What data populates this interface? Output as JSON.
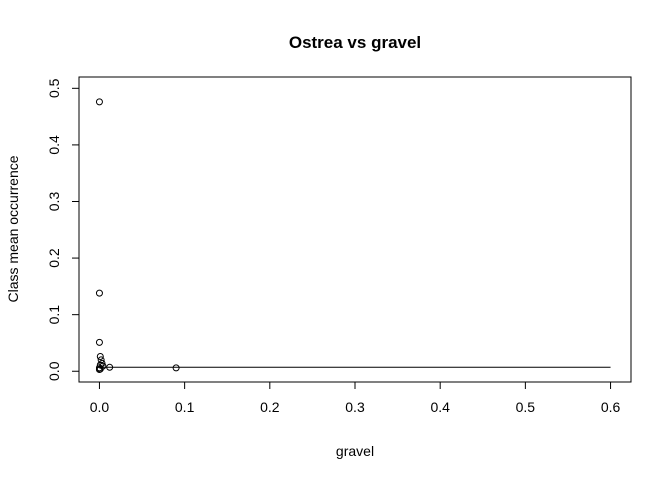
{
  "chart_data": {
    "type": "scatter",
    "title": "Ostrea vs gravel",
    "xlabel": "gravel",
    "ylabel": "Class mean occurrence",
    "xlim": [
      -0.024,
      0.624
    ],
    "ylim": [
      -0.019,
      0.52
    ],
    "x_ticks": [
      0.0,
      0.1,
      0.2,
      0.3,
      0.4,
      0.5,
      0.6
    ],
    "x_tick_labels": [
      "0.0",
      "0.1",
      "0.2",
      "0.3",
      "0.4",
      "0.5",
      "0.6"
    ],
    "y_ticks": [
      0.0,
      0.1,
      0.2,
      0.3,
      0.4,
      0.5
    ],
    "y_tick_labels": [
      "0.0",
      "0.1",
      "0.2",
      "0.3",
      "0.4",
      "0.5"
    ],
    "grid": false,
    "points": [
      {
        "x": 0.0,
        "y": 0.476
      },
      {
        "x": 0.0,
        "y": 0.138
      },
      {
        "x": 0.0,
        "y": 0.051
      },
      {
        "x": 0.001,
        "y": 0.026
      },
      {
        "x": 0.002,
        "y": 0.02
      },
      {
        "x": 0.003,
        "y": 0.014
      },
      {
        "x": 0.001,
        "y": 0.011
      },
      {
        "x": 0.004,
        "y": 0.009
      },
      {
        "x": 0.0,
        "y": 0.006
      },
      {
        "x": 0.001,
        "y": 0.004
      },
      {
        "x": 0.0,
        "y": 0.003
      },
      {
        "x": 0.012,
        "y": 0.007
      },
      {
        "x": 0.09,
        "y": 0.006
      }
    ],
    "line": {
      "x": [
        0.0,
        0.6
      ],
      "y": [
        0.007,
        0.007
      ]
    }
  }
}
